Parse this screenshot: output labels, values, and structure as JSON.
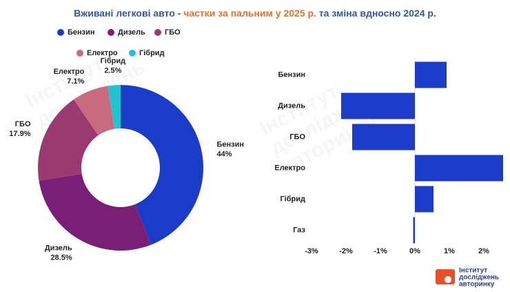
{
  "title": [
    "Вживані легкові авто - ",
    "частки за пальним у 2025 р.",
    " та зміна вдносно 2024 р."
  ],
  "watermark": [
    "Інститут",
    "досліджень",
    "авторинку"
  ],
  "logo": [
    "Інститут",
    "досліджень",
    "авторинку"
  ],
  "chart_data": [
    {
      "type": "pie",
      "categories": [
        "Бензин",
        "Дизель",
        "ГБО",
        "Електро",
        "Гібрид"
      ],
      "values": [
        44,
        28.5,
        17.9,
        7.1,
        2.5
      ],
      "value_labels": [
        "44%",
        "28.5%",
        "17.9%",
        "7.1%",
        "2.5%"
      ],
      "colors": [
        "#1a3cc8",
        "#7a1f78",
        "#9a3a70",
        "#c86b80",
        "#1ec5d0"
      ],
      "donut": true
    },
    {
      "type": "hbar",
      "categories": [
        "Бензин",
        "Дизель",
        "ГБО",
        "Електро",
        "Гібрид",
        "Газ"
      ],
      "values": [
        0.92,
        -2.14,
        -1.82,
        2.56,
        0.54,
        -0.05
      ],
      "color": "#1a3cc8",
      "xlim": [
        -3,
        2.6
      ],
      "xticks": [
        {
          "value": -3,
          "label": "-3%"
        },
        {
          "value": -2,
          "label": "-2%"
        },
        {
          "value": -1,
          "label": "-1%"
        },
        {
          "value": 0,
          "label": "0%"
        },
        {
          "value": 1,
          "label": "1%"
        },
        {
          "value": 2,
          "label": "2%"
        }
      ]
    }
  ]
}
